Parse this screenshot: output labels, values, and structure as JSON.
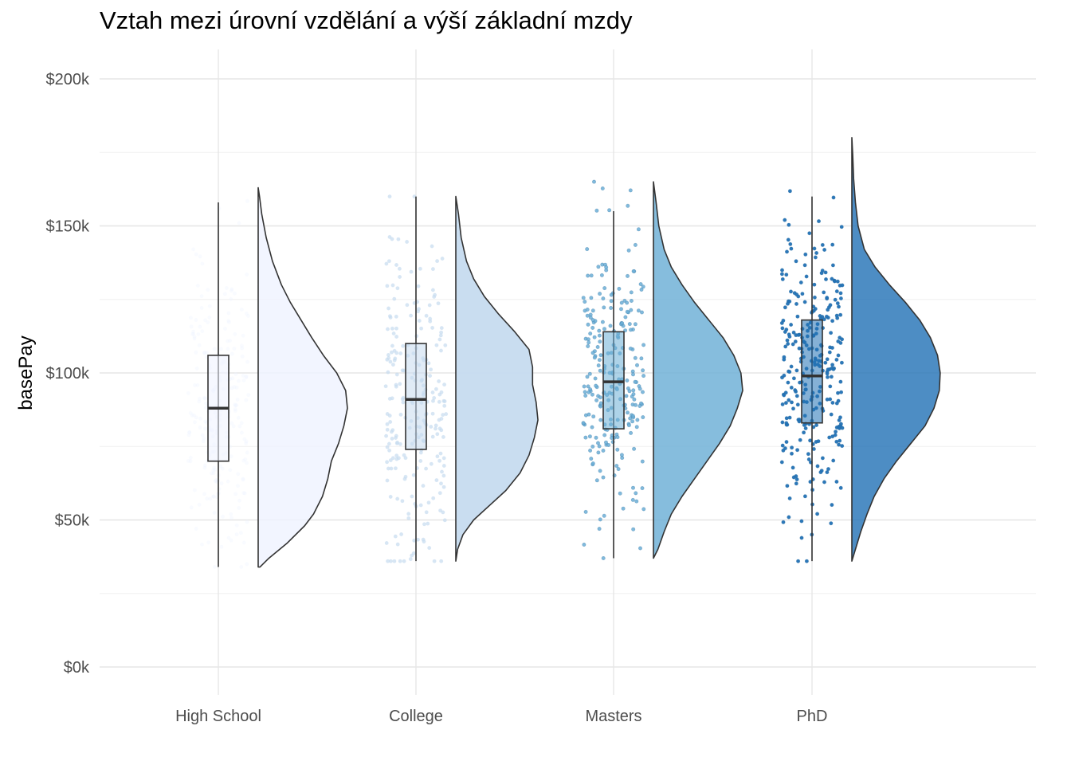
{
  "chart_data": {
    "type": "raincloud",
    "title": "Vztah mezi úrovní vzdělání a výší základní mzdy",
    "xlabel": "",
    "ylabel": "basePay",
    "ylim": [
      -8000,
      210000
    ],
    "y_ticks": [
      0,
      50000,
      100000,
      150000,
      200000
    ],
    "y_tick_labels": [
      "$0k",
      "$50k",
      "$100k",
      "$150k",
      "$200k"
    ],
    "grid": true,
    "categories": [
      "High School",
      "College",
      "Masters",
      "PhD"
    ],
    "series": [
      {
        "category": "High School",
        "color": "#eff3ff",
        "fill_opacity": 0.8,
        "point_opacity": 0.35,
        "n_points": 230,
        "min": 34000,
        "q1": 70000,
        "median": 88000,
        "q3": 106000,
        "max": 158000,
        "max_point": 163000,
        "density": [
          [
            34000,
            0.02
          ],
          [
            37000,
            0.12
          ],
          [
            42000,
            0.32
          ],
          [
            48000,
            0.52
          ],
          [
            52000,
            0.62
          ],
          [
            58000,
            0.72
          ],
          [
            64000,
            0.78
          ],
          [
            70000,
            0.82
          ],
          [
            76000,
            0.9
          ],
          [
            82000,
            0.96
          ],
          [
            88000,
            1.0
          ],
          [
            94000,
            0.98
          ],
          [
            100000,
            0.88
          ],
          [
            106000,
            0.73
          ],
          [
            112000,
            0.6
          ],
          [
            118000,
            0.48
          ],
          [
            124000,
            0.36
          ],
          [
            130000,
            0.26
          ],
          [
            138000,
            0.16
          ],
          [
            146000,
            0.09
          ],
          [
            154000,
            0.04
          ],
          [
            160000,
            0.015
          ],
          [
            163000,
            0.0
          ]
        ]
      },
      {
        "category": "College",
        "color": "#c6dbef",
        "fill_opacity": 0.95,
        "point_opacity": 0.7,
        "n_points": 240,
        "min": 36000,
        "q1": 74000,
        "median": 91000,
        "q3": 110000,
        "max": 160000,
        "max_point": 160000,
        "density": [
          [
            36000,
            0.0
          ],
          [
            40000,
            0.02
          ],
          [
            45000,
            0.08
          ],
          [
            50000,
            0.2
          ],
          [
            55000,
            0.38
          ],
          [
            60000,
            0.56
          ],
          [
            66000,
            0.72
          ],
          [
            72000,
            0.82
          ],
          [
            78000,
            0.88
          ],
          [
            84000,
            0.92
          ],
          [
            90000,
            0.9
          ],
          [
            96000,
            0.86
          ],
          [
            102000,
            0.86
          ],
          [
            108000,
            0.82
          ],
          [
            114000,
            0.66
          ],
          [
            120000,
            0.48
          ],
          [
            126000,
            0.32
          ],
          [
            132000,
            0.2
          ],
          [
            138000,
            0.12
          ],
          [
            146000,
            0.06
          ],
          [
            154000,
            0.03
          ],
          [
            160000,
            0.0
          ]
        ]
      },
      {
        "category": "Masters",
        "color": "#6baed6",
        "fill_opacity": 0.82,
        "point_opacity": 0.85,
        "n_points": 250,
        "min": 37000,
        "q1": 81000,
        "median": 97000,
        "q3": 114000,
        "max": 155000,
        "max_point": 165000,
        "density": [
          [
            37000,
            0.0
          ],
          [
            40000,
            0.05
          ],
          [
            46000,
            0.12
          ],
          [
            52000,
            0.2
          ],
          [
            58000,
            0.32
          ],
          [
            64000,
            0.46
          ],
          [
            70000,
            0.6
          ],
          [
            76000,
            0.74
          ],
          [
            82000,
            0.86
          ],
          [
            88000,
            0.94
          ],
          [
            94000,
            1.0
          ],
          [
            100000,
            0.98
          ],
          [
            106000,
            0.9
          ],
          [
            112000,
            0.78
          ],
          [
            118000,
            0.62
          ],
          [
            124000,
            0.46
          ],
          [
            130000,
            0.32
          ],
          [
            136000,
            0.2
          ],
          [
            142000,
            0.12
          ],
          [
            150000,
            0.06
          ],
          [
            158000,
            0.03
          ],
          [
            165000,
            0.0
          ]
        ]
      },
      {
        "category": "PhD",
        "color": "#2171b5",
        "fill_opacity": 0.8,
        "point_opacity": 0.95,
        "n_points": 300,
        "min": 36000,
        "q1": 83000,
        "median": 99000,
        "q3": 118000,
        "max": 160000,
        "max_point": 180000,
        "density": [
          [
            36000,
            0.0
          ],
          [
            40000,
            0.04
          ],
          [
            46000,
            0.1
          ],
          [
            52000,
            0.17
          ],
          [
            58000,
            0.25
          ],
          [
            64000,
            0.36
          ],
          [
            70000,
            0.5
          ],
          [
            76000,
            0.66
          ],
          [
            82000,
            0.82
          ],
          [
            88000,
            0.92
          ],
          [
            94000,
            0.98
          ],
          [
            100000,
            0.99
          ],
          [
            106000,
            0.96
          ],
          [
            112000,
            0.88
          ],
          [
            118000,
            0.76
          ],
          [
            124000,
            0.6
          ],
          [
            130000,
            0.42
          ],
          [
            136000,
            0.26
          ],
          [
            142000,
            0.14
          ],
          [
            150000,
            0.07
          ],
          [
            158000,
            0.04
          ],
          [
            166000,
            0.02
          ],
          [
            174000,
            0.01
          ],
          [
            180000,
            0.0
          ]
        ]
      }
    ]
  }
}
